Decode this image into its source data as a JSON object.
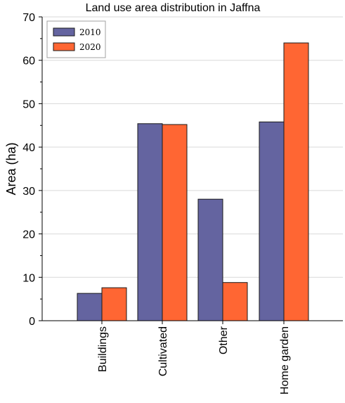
{
  "chart_data": {
    "type": "bar",
    "title": "Land use area distribution in Jaffna",
    "xlabel": "",
    "ylabel": "Area (ha)",
    "categories": [
      "Buildings",
      "Cultivated",
      "Other",
      "Home garden"
    ],
    "series": [
      {
        "name": "2010",
        "values": [
          6.3,
          45.4,
          28.0,
          45.8
        ],
        "color": "#6464a0"
      },
      {
        "name": "2020",
        "values": [
          7.6,
          45.2,
          8.8,
          64.0
        ],
        "color": "#ff6633"
      }
    ],
    "ylim": [
      0,
      70
    ],
    "yticks": [
      0,
      10,
      20,
      30,
      40,
      50,
      60,
      70
    ],
    "grid": true,
    "legend_position": "top-left"
  }
}
